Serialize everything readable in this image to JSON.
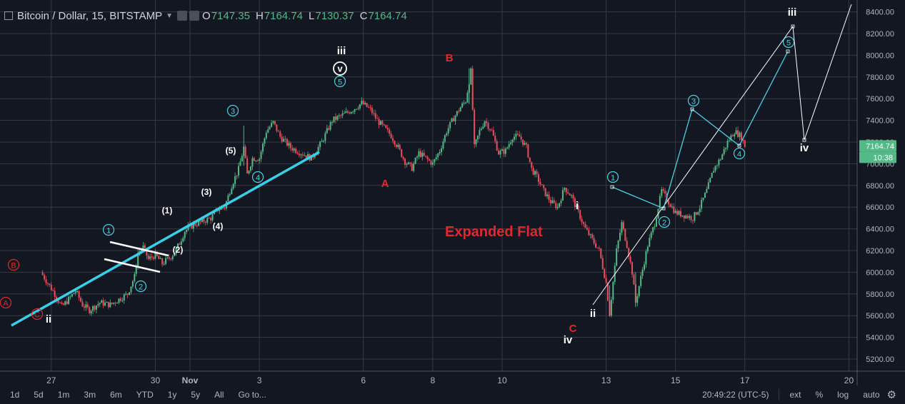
{
  "header": {
    "symbol": "Bitcoin / Dollar, 15, BITSTAMP",
    "open_label": "O",
    "open": "7147.35",
    "high_label": "H",
    "high": "7164.74",
    "low_label": "L",
    "low": "7130.37",
    "close_label": "C",
    "close": "7164.74"
  },
  "chart_data": {
    "type": "candlestick",
    "title": "",
    "x_ticks": [
      {
        "label": "27",
        "day": -4
      },
      {
        "label": "30",
        "day": -1
      },
      {
        "label": "Nov",
        "day": 0
      },
      {
        "label": "3",
        "day": 2
      },
      {
        "label": "6",
        "day": 5
      },
      {
        "label": "8",
        "day": 7
      },
      {
        "label": "10",
        "day": 9
      },
      {
        "label": "13",
        "day": 12
      },
      {
        "label": "15",
        "day": 14
      },
      {
        "label": "17",
        "day": 16
      },
      {
        "label": "20",
        "day": 19
      }
    ],
    "y_ticks": [
      "5200.00",
      "5400.00",
      "5600.00",
      "5800.00",
      "6000.00",
      "6200.00",
      "6400.00",
      "6600.00",
      "6800.00",
      "7000.00",
      "7200.00",
      "7400.00",
      "7600.00",
      "7800.00",
      "8000.00",
      "8200.00",
      "8400.00"
    ],
    "ylim": [
      5100,
      8480
    ],
    "last_price": "7164.74",
    "last_price_value": 7164.74,
    "countdown": "10:38",
    "price_path": [
      [
        -4.3,
        6000
      ],
      [
        -4.1,
        5900
      ],
      [
        -3.9,
        5800
      ],
      [
        -3.7,
        5680
      ],
      [
        -3.5,
        5750
      ],
      [
        -3.3,
        5830
      ],
      [
        -3.1,
        5700
      ],
      [
        -2.9,
        5650
      ],
      [
        -2.6,
        5720
      ],
      [
        -2.3,
        5700
      ],
      [
        -2.0,
        5760
      ],
      [
        -1.8,
        5800
      ],
      [
        -1.6,
        5960
      ],
      [
        -1.5,
        6180
      ],
      [
        -1.35,
        6230
      ],
      [
        -1.2,
        6120
      ],
      [
        -1.0,
        6160
      ],
      [
        -0.8,
        6080
      ],
      [
        -0.6,
        6130
      ],
      [
        -0.45,
        6180
      ],
      [
        -0.3,
        6270
      ],
      [
        -0.15,
        6380
      ],
      [
        0.1,
        6440
      ],
      [
        0.3,
        6460
      ],
      [
        0.6,
        6500
      ],
      [
        0.8,
        6580
      ],
      [
        1.0,
        6600
      ],
      [
        1.2,
        6800
      ],
      [
        1.4,
        6950
      ],
      [
        1.55,
        7150
      ],
      [
        1.65,
        6900
      ],
      [
        1.8,
        7050
      ],
      [
        2.0,
        7050
      ],
      [
        2.2,
        7300
      ],
      [
        2.4,
        7380
      ],
      [
        2.6,
        7250
      ],
      [
        2.9,
        7150
      ],
      [
        3.2,
        7100
      ],
      [
        3.5,
        7050
      ],
      [
        3.8,
        7200
      ],
      [
        4.1,
        7400
      ],
      [
        4.4,
        7450
      ],
      [
        4.7,
        7500
      ],
      [
        4.95,
        7560
      ],
      [
        5.2,
        7500
      ],
      [
        5.4,
        7400
      ],
      [
        5.6,
        7330
      ],
      [
        5.8,
        7260
      ],
      [
        6.0,
        7150
      ],
      [
        6.2,
        7020
      ],
      [
        6.4,
        6960
      ],
      [
        6.6,
        7100
      ],
      [
        6.8,
        7050
      ],
      [
        7.0,
        7000
      ],
      [
        7.2,
        7120
      ],
      [
        7.4,
        7300
      ],
      [
        7.6,
        7420
      ],
      [
        7.8,
        7520
      ],
      [
        7.95,
        7580
      ],
      [
        8.1,
        7850
      ],
      [
        8.2,
        7150
      ],
      [
        8.35,
        7300
      ],
      [
        8.5,
        7400
      ],
      [
        8.7,
        7300
      ],
      [
        8.9,
        7100
      ],
      [
        9.1,
        7120
      ],
      [
        9.3,
        7250
      ],
      [
        9.5,
        7250
      ],
      [
        9.7,
        7150
      ],
      [
        9.85,
        6950
      ],
      [
        10.0,
        6880
      ],
      [
        10.2,
        6750
      ],
      [
        10.4,
        6650
      ],
      [
        10.6,
        6600
      ],
      [
        10.8,
        6780
      ],
      [
        11.0,
        6700
      ],
      [
        11.2,
        6550
      ],
      [
        11.4,
        6400
      ],
      [
        11.6,
        6300
      ],
      [
        11.8,
        6200
      ],
      [
        12.0,
        5900
      ],
      [
        12.1,
        5620
      ],
      [
        12.3,
        6200
      ],
      [
        12.45,
        6450
      ],
      [
        12.6,
        6250
      ],
      [
        12.75,
        6000
      ],
      [
        12.85,
        5720
      ],
      [
        13.0,
        5950
      ],
      [
        13.2,
        6250
      ],
      [
        13.4,
        6450
      ],
      [
        13.6,
        6750
      ],
      [
        13.8,
        6650
      ],
      [
        14.0,
        6550
      ],
      [
        14.3,
        6520
      ],
      [
        14.5,
        6500
      ],
      [
        14.7,
        6600
      ],
      [
        14.9,
        6750
      ],
      [
        15.1,
        6950
      ],
      [
        15.3,
        7050
      ],
      [
        15.5,
        7200
      ],
      [
        15.7,
        7300
      ],
      [
        15.9,
        7250
      ],
      [
        16.0,
        7164.74
      ]
    ]
  },
  "annotations": {
    "waves": [
      {
        "label": "A",
        "style": "circle-red"
      },
      {
        "label": "B",
        "style": "circle-red"
      },
      {
        "label": "C",
        "style": "circle-red"
      },
      {
        "label": "ii",
        "style": "white-bold"
      },
      {
        "label": "1",
        "style": "circle-cyan"
      },
      {
        "label": "2",
        "style": "circle-cyan"
      },
      {
        "label": "(1)",
        "style": "white"
      },
      {
        "label": "(2)",
        "style": "white"
      },
      {
        "label": "(3)",
        "style": "white"
      },
      {
        "label": "(4)",
        "style": "white"
      },
      {
        "label": "(5)",
        "style": "white"
      },
      {
        "label": "3",
        "style": "circle-cyan"
      },
      {
        "label": "4",
        "style": "circle-cyan"
      },
      {
        "label": "iii",
        "style": "white-bold"
      },
      {
        "label": "v",
        "style": "circle-white"
      },
      {
        "label": "5",
        "style": "circle-cyan"
      },
      {
        "label": "A",
        "style": "red-bold"
      },
      {
        "label": "B",
        "style": "red-bold"
      },
      {
        "label": "C",
        "style": "red-bold"
      },
      {
        "label": "Expanded Flat",
        "style": "red-big"
      },
      {
        "label": "i",
        "style": "white-bold"
      },
      {
        "label": "ii",
        "style": "white-bold"
      },
      {
        "label": "iv",
        "style": "white-bold"
      },
      {
        "label": "1",
        "style": "circle-cyan"
      },
      {
        "label": "2",
        "style": "circle-cyan"
      },
      {
        "label": "3",
        "style": "circle-cyan"
      },
      {
        "label": "4",
        "style": "circle-cyan"
      },
      {
        "label": "5",
        "style": "circle-cyan"
      },
      {
        "label": "iii",
        "style": "white-bold"
      },
      {
        "label": "iv",
        "style": "white-bold"
      }
    ],
    "colors": {
      "up": "#53b987",
      "down": "#eb4d5c",
      "cyan": "#4dd0e1",
      "trend": "#38d0e8",
      "red": "#e0282f",
      "white": "#ffffff",
      "grid": "#363a45",
      "background": "#131722"
    }
  },
  "bottom_bar": {
    "ranges": [
      "1d",
      "5d",
      "1m",
      "3m",
      "6m",
      "YTD",
      "1y",
      "5y",
      "All"
    ],
    "goto": "Go to...",
    "time": "20:49:22 (UTC-5)",
    "ext": "ext",
    "percent": "%",
    "log": "log",
    "auto": "auto",
    "settings_icon": "gear-icon"
  }
}
